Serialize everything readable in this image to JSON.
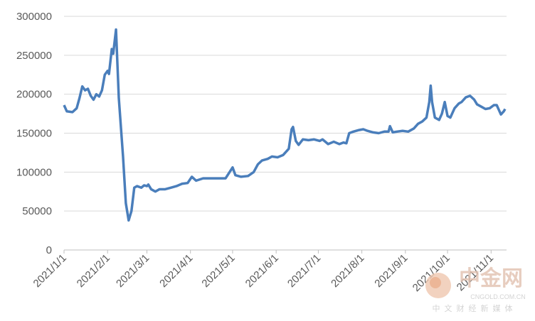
{
  "chart_data": {
    "type": "line",
    "x": [
      "2021/1/1",
      "2021/1/3",
      "2021/1/7",
      "2021/1/10",
      "2021/1/12",
      "2021/1/14",
      "2021/1/16",
      "2021/1/18",
      "2021/1/20",
      "2021/1/22",
      "2021/1/24",
      "2021/1/26",
      "2021/1/28",
      "2021/1/30",
      "2021/2/1",
      "2021/2/2",
      "2021/2/4",
      "2021/2/5",
      "2021/2/7",
      "2021/2/9",
      "2021/2/12",
      "2021/2/14",
      "2021/2/16",
      "2021/2/18",
      "2021/2/20",
      "2021/2/22",
      "2021/2/25",
      "2021/2/27",
      "2021/3/1",
      "2021/3/2",
      "2021/3/4",
      "2021/3/7",
      "2021/3/10",
      "2021/3/14",
      "2021/3/18",
      "2021/3/22",
      "2021/3/26",
      "2021/3/30",
      "2021/4/2",
      "2021/4/5",
      "2021/4/10",
      "2021/4/15",
      "2021/4/21",
      "2021/4/26",
      "2021/5/1",
      "2021/5/3",
      "2021/5/7",
      "2021/5/12",
      "2021/5/16",
      "2021/5/19",
      "2021/5/22",
      "2021/5/26",
      "2021/5/29",
      "2021/6/2",
      "2021/6/6",
      "2021/6/10",
      "2021/6/12",
      "2021/6/13",
      "2021/6/15",
      "2021/6/17",
      "2021/6/20",
      "2021/6/24",
      "2021/6/28",
      "2021/7/2",
      "2021/7/4",
      "2021/7/8",
      "2021/7/12",
      "2021/7/16",
      "2021/7/19",
      "2021/7/21",
      "2021/7/23",
      "2021/7/26",
      "2021/7/30",
      "2021/8/2",
      "2021/8/5",
      "2021/8/9",
      "2021/8/13",
      "2021/8/17",
      "2021/8/20",
      "2021/8/21",
      "2021/8/23",
      "2021/8/26",
      "2021/8/30",
      "2021/9/3",
      "2021/9/7",
      "2021/9/10",
      "2021/9/13",
      "2021/9/16",
      "2021/9/18",
      "2021/9/19",
      "2021/9/20",
      "2021/9/22",
      "2021/9/25",
      "2021/9/27",
      "2021/9/29",
      "2021/10/1",
      "2021/10/3",
      "2021/10/6",
      "2021/10/9",
      "2021/10/11",
      "2021/10/14",
      "2021/10/17",
      "2021/10/20",
      "2021/10/22",
      "2021/10/25",
      "2021/10/28",
      "2021/10/31",
      "2021/11/3",
      "2021/11/5",
      "2021/11/8",
      "2021/11/10",
      "2021/11/11"
    ],
    "series": [
      {
        "color": "#4a7ebb",
        "values": [
          186000,
          178000,
          177000,
          182000,
          195000,
          210000,
          205000,
          207000,
          198000,
          193000,
          200000,
          197000,
          205000,
          225000,
          230000,
          226000,
          258000,
          252000,
          283000,
          195000,
          120000,
          60000,
          38000,
          50000,
          80000,
          82000,
          80000,
          83000,
          82000,
          84000,
          78000,
          75000,
          78000,
          78000,
          80000,
          82000,
          85000,
          86000,
          94000,
          89000,
          92000,
          92000,
          92000,
          92000,
          106000,
          96000,
          94000,
          95000,
          100000,
          110000,
          115000,
          117000,
          120000,
          119000,
          122000,
          130000,
          155000,
          158000,
          140000,
          135000,
          142000,
          141000,
          142000,
          140000,
          142000,
          136000,
          139000,
          136000,
          138000,
          137000,
          150000,
          152000,
          154000,
          155000,
          153000,
          151000,
          150000,
          152000,
          152000,
          159000,
          151000,
          152000,
          153000,
          152000,
          156000,
          162000,
          165000,
          170000,
          190000,
          211000,
          190000,
          170000,
          167000,
          175000,
          190000,
          172000,
          170000,
          182000,
          188000,
          190000,
          196000,
          198000,
          193000,
          187000,
          184000,
          181000,
          182000,
          186000,
          186000,
          174000,
          178000,
          181000
        ]
      }
    ],
    "xlim": [
      "2021/1/1",
      "2021/11/12"
    ],
    "xticks": [
      "2021/1/1",
      "2021/2/1",
      "2021/3/1",
      "2021/4/1",
      "2021/5/1",
      "2021/6/1",
      "2021/7/1",
      "2021/8/1",
      "2021/9/1",
      "2021/10/1",
      "2021/11/1"
    ],
    "ylim": [
      0,
      300000
    ],
    "yticks": [
      0,
      50000,
      100000,
      150000,
      200000,
      250000,
      300000
    ],
    "grid": true
  },
  "watermark": {
    "logo": "中金网",
    "domain": "CNGOLD.COM.CN",
    "slogan": "中文财经新媒体"
  }
}
